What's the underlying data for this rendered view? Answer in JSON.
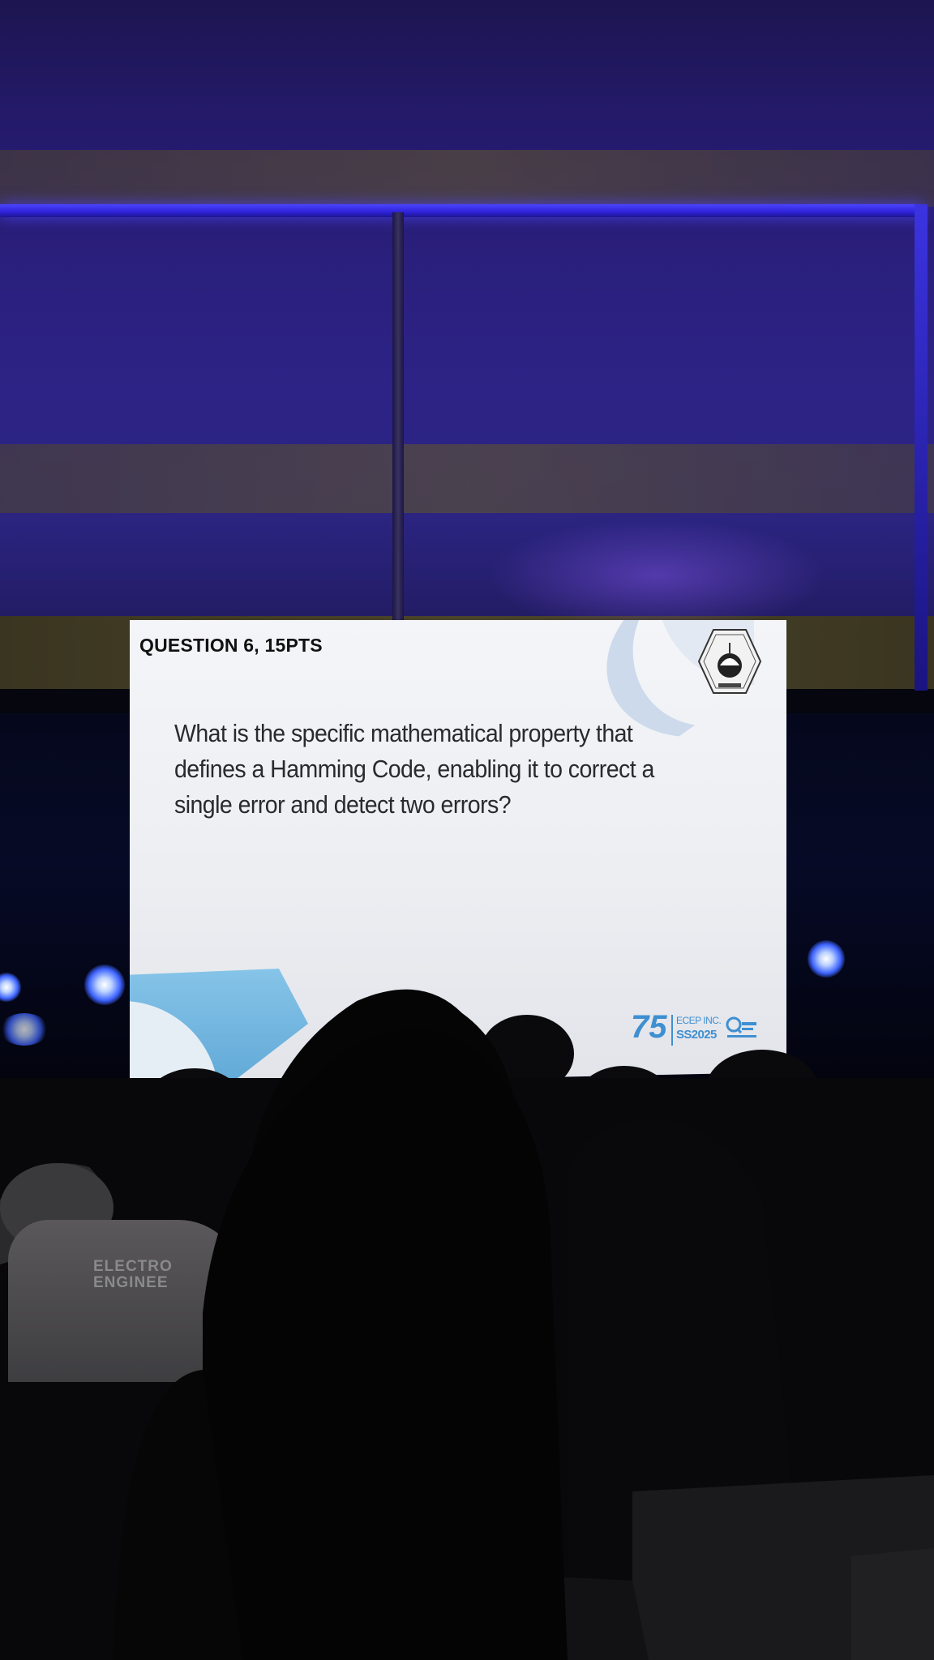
{
  "slide": {
    "header": "QUESTION 6, 15PTS",
    "question_line1": "What is the specific mathematical property that",
    "question_line2": "defines a Hamming Code, enabling it to correct a",
    "question_line3": "single error and detect two errors?",
    "logo_number": "75",
    "logo_org": "ECEP INC.",
    "logo_event": "SS2025"
  },
  "audience": {
    "shirt_line1": "ELECTRO",
    "shirt_line2": "ENGINEE"
  },
  "colors": {
    "accent_blue": "#3f8fd1",
    "stage_light": "#3d63ff",
    "screen_white": "#f4f5f8"
  }
}
